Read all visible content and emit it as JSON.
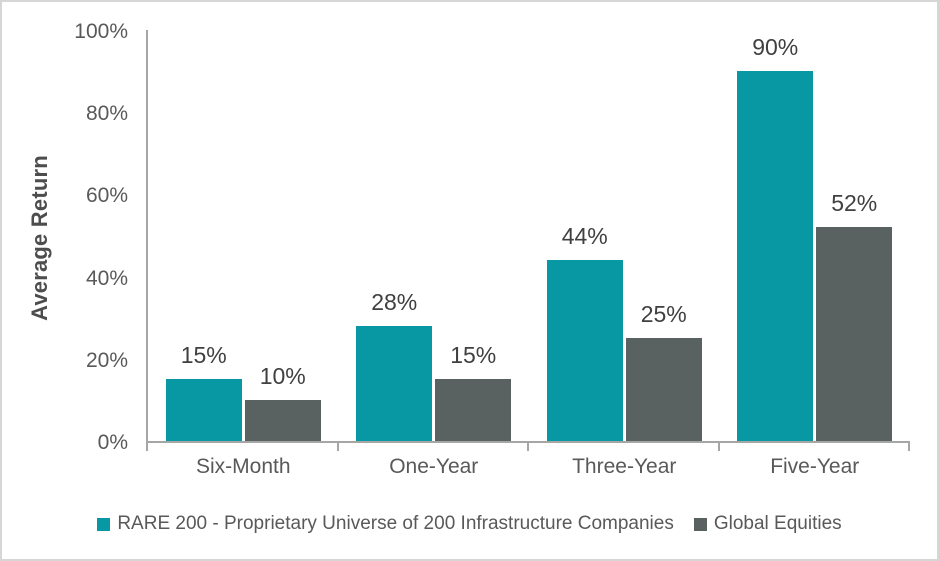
{
  "chart_data": {
    "type": "bar",
    "title": "",
    "ylabel": "Average Return",
    "xlabel": "",
    "ylim": [
      0,
      100
    ],
    "yticks": [
      0,
      20,
      40,
      60,
      80,
      100
    ],
    "ytick_suffix": "%",
    "data_label_suffix": "%",
    "grid": false,
    "legend_position": "bottom",
    "categories": [
      "Six-Month",
      "One-Year",
      "Three-Year",
      "Five-Year"
    ],
    "series": [
      {
        "name": "RARE 200 - Proprietary Universe of 200 Infrastructure Companies",
        "color": "#0798a3",
        "values": [
          15,
          28,
          44,
          90
        ]
      },
      {
        "name": "Global Equities",
        "color": "#5a6161",
        "values": [
          10,
          15,
          25,
          52
        ]
      }
    ],
    "colors": {
      "axis_line": "#a6a6a6",
      "tick_text": "#595959",
      "data_label_text": "#404040",
      "frame_border": "#d6d6d6",
      "background": "#ffffff"
    }
  }
}
